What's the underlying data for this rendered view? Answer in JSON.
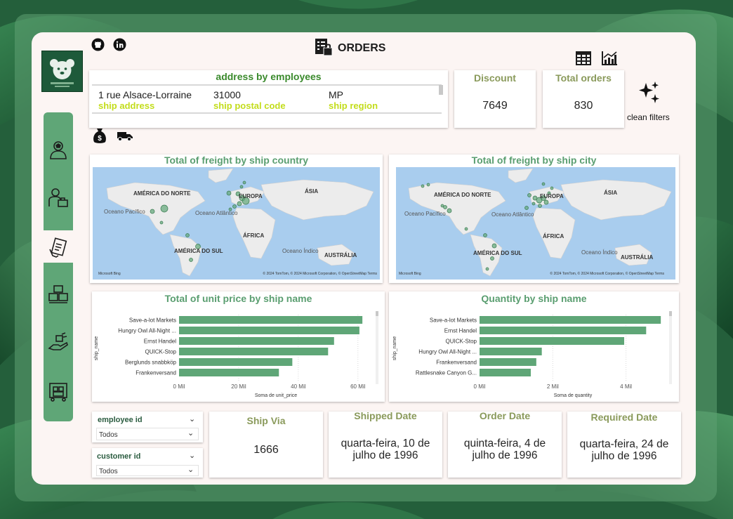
{
  "page": {
    "title": "ORDERS",
    "clean_filters_label": "clean filters"
  },
  "address_card": {
    "title": "address by employees",
    "address": "1 rue Alsace-Lorraine",
    "postal_code": "31000",
    "region": "MP",
    "address_label": "ship address",
    "postal_label": "ship postal code",
    "region_label": "ship region"
  },
  "kpis": {
    "discount": {
      "title": "Discount",
      "value": "7649"
    },
    "total_orders": {
      "title": "Total orders",
      "value": "830"
    },
    "ship_via": {
      "title": "Ship Via",
      "value": "1666"
    },
    "shipped_date": {
      "title": "Shipped Date",
      "value": "quarta-feira, 10 de julho de 1996"
    },
    "order_date": {
      "title": "Order Date",
      "value": "quinta-feira, 4 de julho de 1996"
    },
    "required_date": {
      "title": "Required Date",
      "value": "quarta-feira, 24 de julho de 1996"
    }
  },
  "maps": {
    "country": {
      "title": "Total of freight by ship country",
      "labels": {
        "north_america": "AMÉRICA DO NORTE",
        "europe": "EUROPA",
        "asia": "ÁSIA",
        "pacific": "Oceano Pacífico",
        "atlantic": "Oceano Atlântico",
        "africa": "ÁFRICA",
        "south_america": "AMÉRICA DO SUL",
        "indian": "Oceano Índico",
        "australia": "AUSTRÁLIA"
      },
      "attribution": "© 2024 TomTom, © 2024 Microsoft Corporation, © OpenStreetMap  Terms",
      "logo": "Microsoft Bing"
    },
    "city": {
      "title": "Total of freight by ship city",
      "labels": {
        "north_america": "AMÉRICA DO NORTE",
        "europe": "EUROPA",
        "asia": "ÁSIA",
        "pacific": "Oceano Pacífico",
        "atlantic": "Oceano Atlântico",
        "africa": "ÁFRICA",
        "south_america": "AMÉRICA DO SUL",
        "indian": "Oceano Índico",
        "australia": "AUSTRÁLIA"
      },
      "attribution": "© 2024 TomTom, © 2024 Microsoft Corporation, © OpenStreetMap  Terms",
      "logo": "Microsoft Bing"
    }
  },
  "slicers": {
    "employee": {
      "title": "employee id",
      "value": "Todos"
    },
    "customer": {
      "title": "customer id",
      "value": "Todos"
    }
  },
  "colors": {
    "accent_green": "#5fa677",
    "bar_green": "#5fa677",
    "title_green": "#5a9e70",
    "kpi_olive": "#8a9a5b",
    "label_lime": "#c3dd1b"
  },
  "icons": {
    "github": "github-icon",
    "linkedin": "linkedin-icon",
    "orders": "orders-clipboard-icon",
    "table": "table-icon",
    "chart": "chart-icon",
    "sparkle": "sparkle-icon",
    "money": "money-bag-icon",
    "truck": "truck-icon"
  },
  "chart_data": [
    {
      "type": "bar",
      "orientation": "horizontal",
      "title": "Total of unit price by ship name",
      "xlabel": "Soma de unit_price",
      "ylabel": "ship_name",
      "categories": [
        "Save-a-lot Markets",
        "Hungry Owl All-Night ...",
        "Ernst Handel",
        "QUICK-Stop",
        "Berglunds snabbköp",
        "Frankenversand"
      ],
      "values": [
        61500,
        60500,
        52000,
        50000,
        38000,
        33500
      ],
      "xlim": [
        0,
        65000
      ],
      "xticks": [
        0,
        20000,
        40000,
        60000
      ],
      "xtick_labels": [
        "0 Mil",
        "20 Mil",
        "40 Mil",
        "60 Mil"
      ],
      "grid": true
    },
    {
      "type": "bar",
      "orientation": "horizontal",
      "title": "Quantity by ship name",
      "xlabel": "Soma de quantity",
      "ylabel": "ship_name",
      "categories": [
        "Save-a-lot Markets",
        "Ernst Handel",
        "QUICK-Stop",
        "Hungry Owl All-Night ...",
        "Frankenversand",
        "Rattlesnake Canyon G..."
      ],
      "values": [
        4950,
        4550,
        3950,
        1700,
        1550,
        1400
      ],
      "xlim": [
        0,
        5100
      ],
      "xticks": [
        0,
        2000,
        4000
      ],
      "xtick_labels": [
        "0 Mil",
        "2 Mil",
        "4 Mil"
      ],
      "grid": true
    }
  ]
}
